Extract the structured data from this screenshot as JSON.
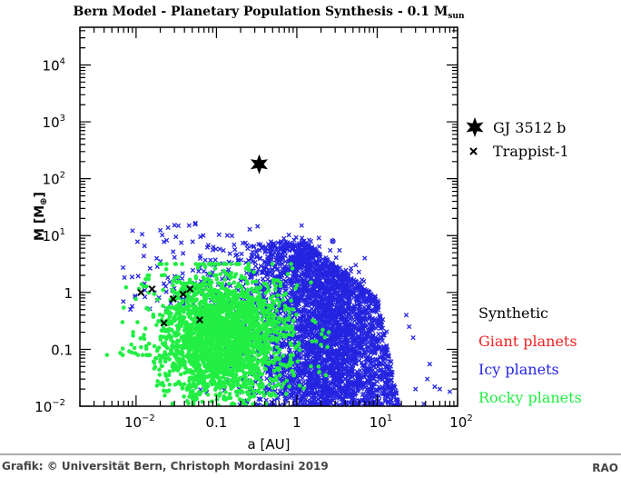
{
  "chart_data": {
    "type": "scatter",
    "title": "Bern Model - Planetary Population Synthesis - 0.1 M",
    "title_subscript": "sun",
    "xlabel": "a [AU]",
    "ylabel": "M [M",
    "ylabel_subscript": "⊕",
    "ylabel_close": "]",
    "xscale": "log",
    "yscale": "log",
    "xlim": [
      0.002,
      100
    ],
    "ylim": [
      0.01,
      46000
    ],
    "x_ticks": [
      {
        "value": 0.01,
        "base": "10",
        "exp": "−2"
      },
      {
        "value": 0.1,
        "base": "0.1",
        "exp": ""
      },
      {
        "value": 1,
        "base": "1",
        "exp": ""
      },
      {
        "value": 10,
        "base": "10",
        "exp": "1"
      },
      {
        "value": 100,
        "base": "10",
        "exp": "2"
      }
    ],
    "y_ticks": [
      {
        "value": 0.01,
        "base": "10",
        "exp": "−2"
      },
      {
        "value": 0.1,
        "base": "0.1",
        "exp": ""
      },
      {
        "value": 1,
        "base": "1",
        "exp": ""
      },
      {
        "value": 10,
        "base": "10",
        "exp": "1"
      },
      {
        "value": 100,
        "base": "10",
        "exp": "2"
      },
      {
        "value": 1000,
        "base": "10",
        "exp": "3"
      },
      {
        "value": 10000,
        "base": "10",
        "exp": "4"
      }
    ],
    "observed": {
      "gj3512b": {
        "name": "GJ 3512 b",
        "a": 0.34,
        "M": 180,
        "marker": "star"
      },
      "trappist1": {
        "name": "Trappist-1",
        "marker": "cross",
        "points": [
          [
            0.0115,
            1.0
          ],
          [
            0.0158,
            1.15
          ],
          [
            0.0222,
            0.29
          ],
          [
            0.029,
            0.77
          ],
          [
            0.0385,
            0.93
          ],
          [
            0.0469,
            1.15
          ],
          [
            0.062,
            0.33
          ]
        ]
      }
    },
    "legend_title": "Synthetic",
    "series": [
      {
        "name": "Giant planets",
        "color": "#ee2222",
        "count": 0
      },
      {
        "name": "Icy planets",
        "color": "#2424e0",
        "marker": "cross",
        "cloud": {
          "count": 4200,
          "log_a_mean": 0.35,
          "log_a_sd": 0.5,
          "log_a_range": [
            -1.2,
            1.35
          ],
          "log_M_range": [
            -2.3,
            0.9
          ]
        },
        "sparse_inner": {
          "count": 150,
          "log_a_range": [
            -2.2,
            -0.8
          ],
          "log_M_range": [
            -0.3,
            1.25
          ]
        },
        "outliers": [
          [
            2.8,
            8
          ],
          [
            1.6,
            4.5
          ],
          [
            1.5,
            5
          ],
          [
            1.2,
            4
          ],
          [
            2.6,
            5.5
          ],
          [
            3.4,
            5.5
          ],
          [
            7,
            4
          ],
          [
            3.9,
            2.3
          ],
          [
            4.3,
            2
          ],
          [
            25,
            0.25
          ],
          [
            23,
            0.4
          ],
          [
            28,
            0.16
          ],
          [
            45,
            0.055
          ],
          [
            42,
            0.03
          ],
          [
            52,
            0.022
          ],
          [
            60,
            0.02
          ],
          [
            80,
            0.018
          ],
          [
            30,
            0.02
          ],
          [
            38,
            0.011
          ]
        ],
        "circles": [
          [
            2.8,
            8
          ],
          [
            1.6,
            4.5
          ],
          [
            1.3,
            3.6
          ],
          [
            1.9,
            3.3
          ],
          [
            1.0,
            2.8
          ]
        ]
      },
      {
        "name": "Rocky planets",
        "color": "#22ee44",
        "marker": "dot",
        "cloud": {
          "count": 2600,
          "log_a_mean": -0.95,
          "log_a_sd": 0.4,
          "log_a_range": [
            -2.55,
            0.35
          ],
          "log_M_mean": -0.75,
          "log_M_sd": 0.55,
          "log_M_range": [
            -2.3,
            0.5
          ]
        },
        "outliers": [
          [
            1.5,
            1.5
          ],
          [
            1.7,
            0.3
          ],
          [
            2.1,
            0.22
          ],
          [
            2.0,
            0.12
          ],
          [
            2.4,
            0.11
          ],
          [
            2.5,
            0.2
          ],
          [
            1.5,
            0.05
          ],
          [
            1.9,
            0.04
          ],
          [
            2.3,
            0.035
          ]
        ]
      }
    ]
  },
  "footer": {
    "credit": "Grafik: © Universität Bern, Christoph Mordasini 2019",
    "logo": "RAO"
  }
}
